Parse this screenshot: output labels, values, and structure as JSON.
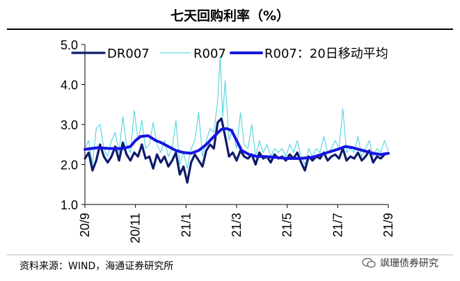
{
  "chart_data": {
    "type": "line",
    "title": "七天回购利率（%）",
    "xlabel": "",
    "ylabel": "",
    "ylim": [
      1.0,
      5.0
    ],
    "yticks": [
      "1.0",
      "2.0",
      "3.0",
      "4.0",
      "5.0"
    ],
    "xticks": [
      "20/9",
      "20/11",
      "21/1",
      "21/3",
      "21/5",
      "21/7",
      "21/9"
    ],
    "xlim_months": [
      0,
      12
    ],
    "legend_position": "top",
    "series": [
      {
        "name": "DR007",
        "style": "thick-dark",
        "color": "#0d1b6b",
        "points": [
          [
            0,
            2.15
          ],
          [
            0.15,
            2.3
          ],
          [
            0.3,
            1.85
          ],
          [
            0.45,
            2.1
          ],
          [
            0.6,
            2.5
          ],
          [
            0.75,
            2.2
          ],
          [
            0.9,
            2.05
          ],
          [
            1.05,
            2.2
          ],
          [
            1.2,
            2.45
          ],
          [
            1.35,
            2.1
          ],
          [
            1.5,
            2.55
          ],
          [
            1.65,
            2.25
          ],
          [
            1.8,
            2.1
          ],
          [
            1.95,
            2.3
          ],
          [
            2.1,
            2.2
          ],
          [
            2.25,
            2.5
          ],
          [
            2.4,
            2.15
          ],
          [
            2.55,
            2.2
          ],
          [
            2.7,
            1.9
          ],
          [
            2.85,
            2.25
          ],
          [
            3.0,
            2.05
          ],
          [
            3.15,
            2.2
          ],
          [
            3.3,
            1.95
          ],
          [
            3.45,
            2.1
          ],
          [
            3.6,
            2.3
          ],
          [
            3.75,
            1.75
          ],
          [
            3.9,
            1.95
          ],
          [
            4.05,
            1.55
          ],
          [
            4.2,
            2.05
          ],
          [
            4.35,
            2.25
          ],
          [
            4.5,
            2.1
          ],
          [
            4.65,
            1.95
          ],
          [
            4.8,
            2.35
          ],
          [
            4.95,
            2.5
          ],
          [
            5.1,
            2.4
          ],
          [
            5.25,
            3.05
          ],
          [
            5.4,
            3.15
          ],
          [
            5.55,
            2.7
          ],
          [
            5.7,
            2.2
          ],
          [
            5.85,
            2.3
          ],
          [
            6.0,
            2.1
          ],
          [
            6.15,
            2.35
          ],
          [
            6.3,
            2.2
          ],
          [
            6.45,
            2.15
          ],
          [
            6.6,
            2.25
          ],
          [
            6.75,
            2.0
          ],
          [
            6.9,
            2.3
          ],
          [
            7.05,
            2.15
          ],
          [
            7.2,
            2.2
          ],
          [
            7.35,
            2.05
          ],
          [
            7.5,
            2.25
          ],
          [
            7.65,
            2.15
          ],
          [
            7.8,
            2.2
          ],
          [
            7.95,
            2.1
          ],
          [
            8.1,
            2.25
          ],
          [
            8.25,
            2.15
          ],
          [
            8.4,
            2.3
          ],
          [
            8.55,
            2.05
          ],
          [
            8.7,
            1.85
          ],
          [
            8.85,
            2.2
          ],
          [
            9.0,
            2.1
          ],
          [
            9.15,
            2.2
          ],
          [
            9.3,
            2.15
          ],
          [
            9.45,
            2.3
          ],
          [
            9.6,
            2.1
          ],
          [
            9.75,
            2.2
          ],
          [
            9.9,
            2.25
          ],
          [
            10.05,
            2.15
          ],
          [
            10.2,
            2.4
          ],
          [
            10.35,
            2.1
          ],
          [
            10.5,
            2.2
          ],
          [
            10.65,
            2.15
          ],
          [
            10.8,
            2.3
          ],
          [
            10.95,
            2.1
          ],
          [
            11.1,
            2.2
          ],
          [
            11.25,
            2.35
          ],
          [
            11.4,
            2.05
          ],
          [
            11.55,
            2.2
          ],
          [
            11.7,
            2.15
          ],
          [
            11.85,
            2.25
          ],
          [
            12.0,
            2.28
          ]
        ]
      },
      {
        "name": "R007",
        "style": "thin-cyan",
        "color": "#3fd0e0",
        "points": [
          [
            0,
            2.4
          ],
          [
            0.15,
            2.6
          ],
          [
            0.3,
            2.0
          ],
          [
            0.45,
            2.9
          ],
          [
            0.6,
            3.0
          ],
          [
            0.75,
            2.4
          ],
          [
            0.9,
            2.2
          ],
          [
            1.05,
            2.6
          ],
          [
            1.2,
            2.8
          ],
          [
            1.35,
            2.3
          ],
          [
            1.5,
            3.2
          ],
          [
            1.65,
            2.5
          ],
          [
            1.8,
            2.3
          ],
          [
            1.95,
            3.35
          ],
          [
            2.1,
            2.6
          ],
          [
            2.25,
            3.1
          ],
          [
            2.4,
            2.4
          ],
          [
            2.55,
            2.5
          ],
          [
            2.7,
            3.05
          ],
          [
            2.85,
            2.5
          ],
          [
            3.0,
            2.3
          ],
          [
            3.15,
            2.6
          ],
          [
            3.3,
            2.2
          ],
          [
            3.45,
            2.4
          ],
          [
            3.6,
            3.1
          ],
          [
            3.75,
            2.0
          ],
          [
            3.9,
            2.3
          ],
          [
            4.05,
            1.9
          ],
          [
            4.2,
            2.4
          ],
          [
            4.35,
            2.6
          ],
          [
            4.5,
            3.3
          ],
          [
            4.65,
            2.2
          ],
          [
            4.8,
            2.6
          ],
          [
            4.95,
            2.9
          ],
          [
            5.1,
            2.8
          ],
          [
            5.25,
            3.6
          ],
          [
            5.35,
            4.7
          ],
          [
            5.45,
            3.2
          ],
          [
            5.55,
            4.1
          ],
          [
            5.7,
            2.6
          ],
          [
            5.85,
            2.9
          ],
          [
            6.0,
            2.4
          ],
          [
            6.15,
            3.3
          ],
          [
            6.3,
            2.5
          ],
          [
            6.45,
            2.4
          ],
          [
            6.6,
            3.0
          ],
          [
            6.75,
            2.2
          ],
          [
            6.9,
            2.6
          ],
          [
            7.05,
            2.3
          ],
          [
            7.2,
            2.5
          ],
          [
            7.35,
            2.2
          ],
          [
            7.5,
            2.4
          ],
          [
            7.65,
            2.3
          ],
          [
            7.8,
            2.4
          ],
          [
            7.95,
            2.2
          ],
          [
            8.1,
            2.5
          ],
          [
            8.25,
            2.3
          ],
          [
            8.4,
            2.6
          ],
          [
            8.55,
            2.2
          ],
          [
            8.7,
            2.0
          ],
          [
            8.85,
            2.4
          ],
          [
            9.0,
            2.2
          ],
          [
            9.15,
            2.4
          ],
          [
            9.3,
            2.3
          ],
          [
            9.45,
            2.7
          ],
          [
            9.6,
            2.3
          ],
          [
            9.75,
            2.4
          ],
          [
            9.9,
            2.6
          ],
          [
            10.05,
            2.4
          ],
          [
            10.2,
            3.4
          ],
          [
            10.35,
            2.3
          ],
          [
            10.5,
            2.4
          ],
          [
            10.65,
            2.3
          ],
          [
            10.8,
            2.7
          ],
          [
            10.95,
            2.2
          ],
          [
            11.1,
            2.4
          ],
          [
            11.25,
            2.6
          ],
          [
            11.4,
            2.2
          ],
          [
            11.55,
            2.4
          ],
          [
            11.7,
            2.3
          ],
          [
            11.85,
            2.6
          ],
          [
            12.0,
            2.35
          ]
        ]
      },
      {
        "name": "R007：20日移动平均",
        "style": "thick-blue",
        "color": "#1515e0",
        "points": [
          [
            0,
            2.38
          ],
          [
            0.5,
            2.42
          ],
          [
            1.0,
            2.4
          ],
          [
            1.5,
            2.4
          ],
          [
            1.8,
            2.45
          ],
          [
            2.0,
            2.6
          ],
          [
            2.2,
            2.7
          ],
          [
            2.5,
            2.72
          ],
          [
            2.8,
            2.6
          ],
          [
            3.0,
            2.55
          ],
          [
            3.3,
            2.45
          ],
          [
            3.6,
            2.35
          ],
          [
            3.9,
            2.3
          ],
          [
            4.2,
            2.28
          ],
          [
            4.5,
            2.35
          ],
          [
            4.8,
            2.5
          ],
          [
            5.1,
            2.7
          ],
          [
            5.4,
            2.88
          ],
          [
            5.6,
            2.9
          ],
          [
            5.8,
            2.85
          ],
          [
            6.0,
            2.6
          ],
          [
            6.2,
            2.35
          ],
          [
            6.5,
            2.25
          ],
          [
            6.8,
            2.2
          ],
          [
            7.1,
            2.2
          ],
          [
            7.5,
            2.18
          ],
          [
            8.0,
            2.15
          ],
          [
            8.5,
            2.15
          ],
          [
            9.0,
            2.18
          ],
          [
            9.5,
            2.28
          ],
          [
            10.0,
            2.38
          ],
          [
            10.3,
            2.45
          ],
          [
            10.6,
            2.42
          ],
          [
            11.0,
            2.35
          ],
          [
            11.4,
            2.28
          ],
          [
            11.7,
            2.25
          ],
          [
            12.0,
            2.28
          ]
        ]
      }
    ],
    "source_note": "资料来源：WIND，海通证券研究所",
    "watermark": "飒珊债券研究"
  }
}
